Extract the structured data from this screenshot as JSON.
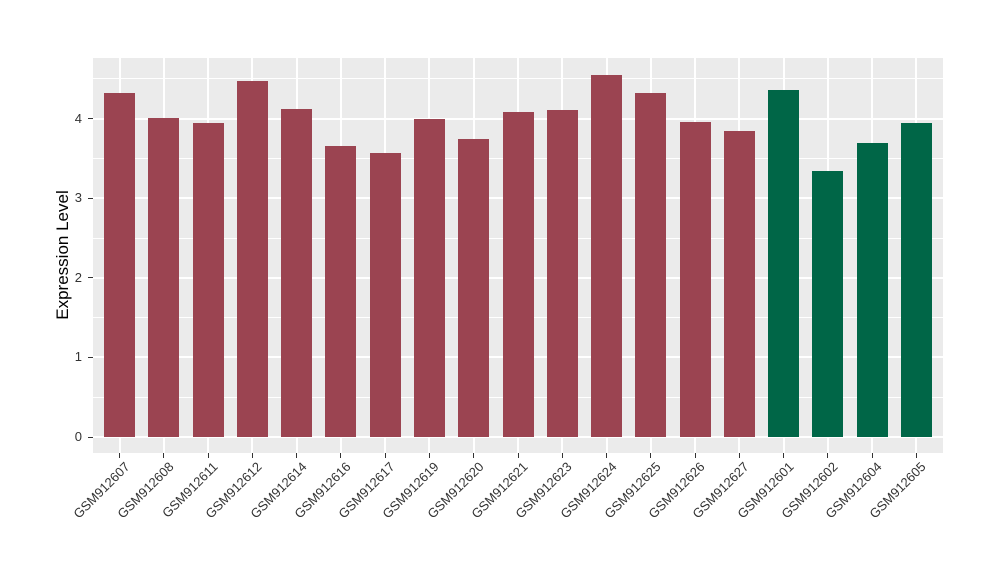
{
  "figure": {
    "background": "#FFFFFF"
  },
  "chart_data": {
    "type": "bar",
    "title": "",
    "xlabel": "",
    "ylabel": "Expression Level",
    "ylim": [
      0,
      4.96
    ],
    "yticks": [
      0,
      1,
      2,
      3,
      4
    ],
    "legend": "none",
    "grid": "white major and minor horizontal lines, white vertical lines at each category, on grey panel",
    "panel_background": "#EBEBEB",
    "grid_color": "#FFFFFF",
    "axis_text_color": "#333333",
    "tick_mark_color": "#333333",
    "group_colors": {
      "maroon": "#9B4451",
      "green": "#006647"
    },
    "categories": [
      "GSM912607",
      "GSM912608",
      "GSM912611",
      "GSM912612",
      "GSM912614",
      "GSM912616",
      "GSM912617",
      "GSM912619",
      "GSM912620",
      "GSM912621",
      "GSM912623",
      "GSM912624",
      "GSM912625",
      "GSM912626",
      "GSM912627",
      "GSM912601",
      "GSM912602",
      "GSM912604",
      "GSM912605"
    ],
    "values": [
      4.32,
      4.01,
      3.94,
      4.47,
      4.12,
      3.66,
      3.57,
      4.0,
      3.74,
      4.08,
      4.11,
      4.55,
      4.32,
      3.96,
      3.84,
      4.36,
      3.34,
      3.69,
      3.94
    ],
    "bar_colors": [
      "#9B4451",
      "#9B4451",
      "#9B4451",
      "#9B4451",
      "#9B4451",
      "#9B4451",
      "#9B4451",
      "#9B4451",
      "#9B4451",
      "#9B4451",
      "#9B4451",
      "#9B4451",
      "#9B4451",
      "#9B4451",
      "#9B4451",
      "#006647",
      "#006647",
      "#006647",
      "#006647"
    ]
  }
}
